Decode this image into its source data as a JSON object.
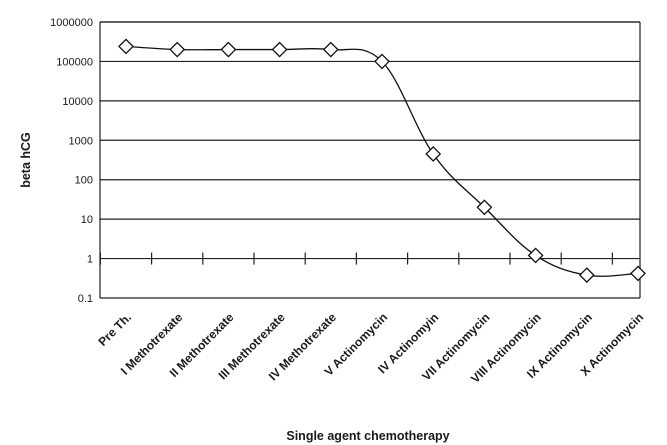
{
  "chart_data": {
    "type": "line",
    "title": "",
    "xlabel": "Single agent chemotherapy",
    "ylabel": "beta hCG",
    "y_scale": "log",
    "ylim": [
      0.1,
      1000000
    ],
    "y_ticks": [
      "0.1",
      "1",
      "10",
      "100",
      "1000",
      "10000",
      "100000",
      "1000000"
    ],
    "grid": "horizontal",
    "legend": "none",
    "marker": "diamond-open",
    "line_color": "#111111",
    "categories": [
      "Pre Th.",
      "I Methotrexate",
      "II Methotrexate",
      "III Methotrexate",
      "IV Methotrexate",
      "V Actinomycin",
      "IV Actinomyin",
      "VII Actinomycin",
      "VIII Actinomycin",
      "IX Actinomycin",
      "X Actinomycin"
    ],
    "series": [
      {
        "values": [
          240000,
          200000,
          200000,
          200000,
          200000,
          100000,
          450,
          20,
          1.2,
          0.38,
          0.42
        ]
      }
    ]
  }
}
